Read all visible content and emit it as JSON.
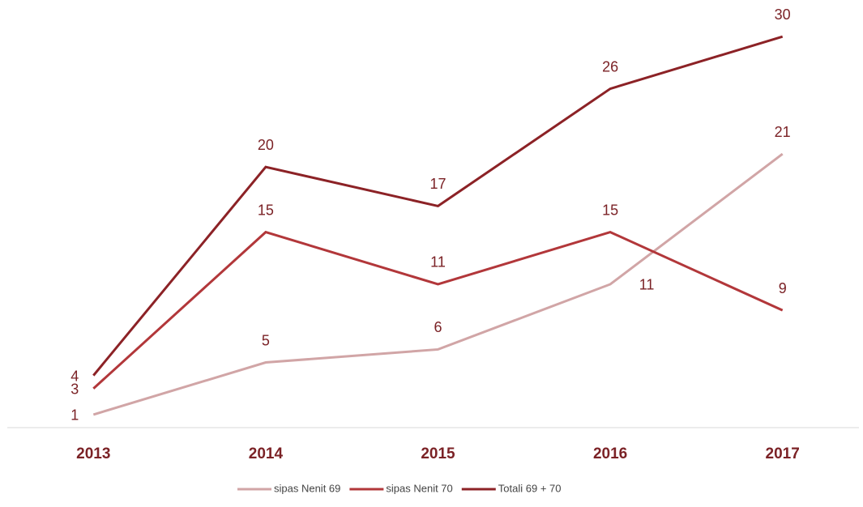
{
  "chart_data": {
    "type": "line",
    "categories": [
      "2013",
      "2014",
      "2015",
      "2016",
      "2017"
    ],
    "series": [
      {
        "name": "sipas Nenit 69",
        "color": "#d1a5a6",
        "values": [
          1,
          5,
          6,
          11,
          21
        ]
      },
      {
        "name": "sipas Nenit 70",
        "color": "#b2373a",
        "values": [
          3,
          15,
          11,
          15,
          9
        ]
      },
      {
        "name": "Totali 69 + 70",
        "color": "#8c2226",
        "values": [
          4,
          20,
          17,
          26,
          30
        ]
      }
    ],
    "ylim": [
      0,
      32
    ]
  }
}
